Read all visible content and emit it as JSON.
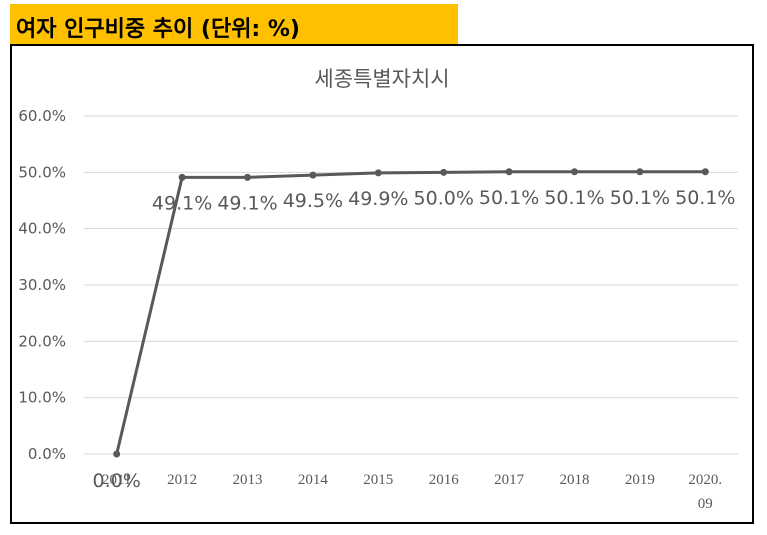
{
  "header": {
    "title": "여자 인구비중 추이 (단위: %)"
  },
  "colors": {
    "header_bg": "#FFC000",
    "line": "#595959",
    "grid": "#D9D9D9",
    "text": "#595959"
  },
  "chart_data": {
    "type": "line",
    "title": "세종특별자치시",
    "categories": [
      "2011",
      "2012",
      "2013",
      "2014",
      "2015",
      "2016",
      "2017",
      "2018",
      "2019",
      "2020.\n09"
    ],
    "series": [
      {
        "values": [
          0.0,
          49.1,
          49.1,
          49.5,
          49.9,
          50.0,
          50.1,
          50.1,
          50.1,
          50.1
        ],
        "data_labels": [
          "0.0%",
          "49.1%",
          "49.1%",
          "49.5%",
          "49.9%",
          "50.0%",
          "50.1%",
          "50.1%",
          "50.1%",
          "50.1%"
        ]
      }
    ],
    "y_ticks": [
      "0.0%",
      "10.0%",
      "20.0%",
      "30.0%",
      "40.0%",
      "50.0%",
      "60.0%"
    ],
    "ylim": [
      0,
      60
    ],
    "grid": true,
    "legend": "none"
  }
}
